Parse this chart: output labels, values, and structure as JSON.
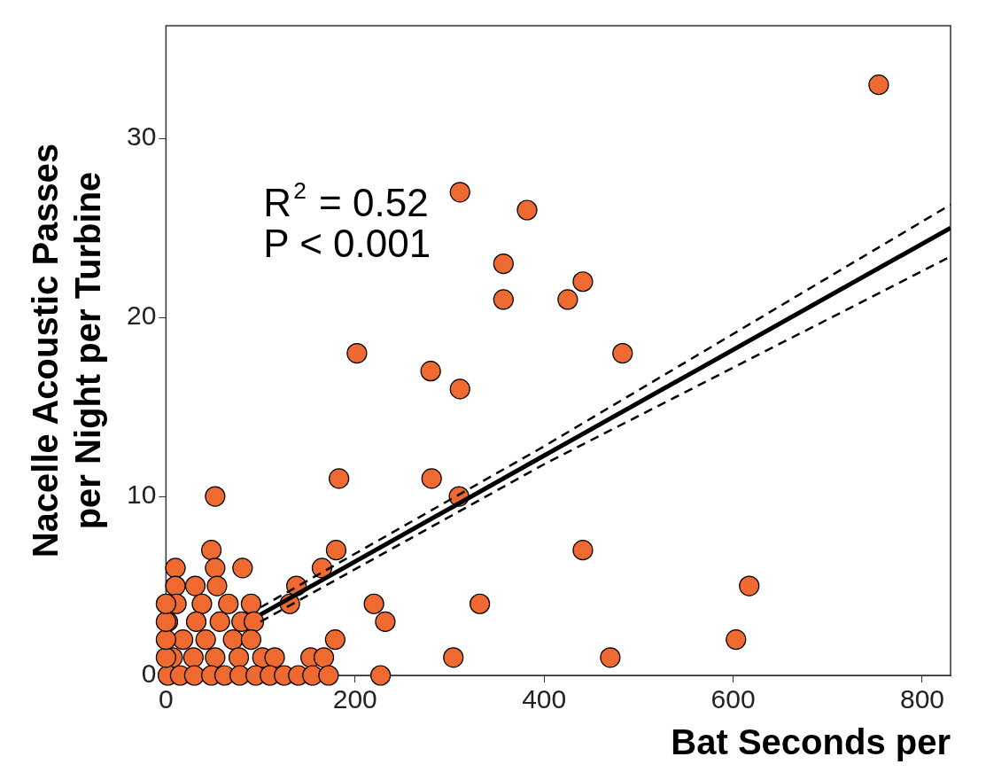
{
  "chart_data": {
    "type": "scatter",
    "xlabel": "Bat Seconds per",
    "ylabel": "Nacelle Acoustic Passes\nper Night per Turbine",
    "xlim": [
      0,
      830
    ],
    "ylim": [
      0,
      36.3
    ],
    "xticks": [
      0,
      200,
      400,
      600,
      800
    ],
    "yticks": [
      0,
      10,
      20,
      30
    ],
    "grid": false,
    "legend": false,
    "annotations": [
      "R$^{2}$ = 0.52",
      "P < 0.001"
    ],
    "series": [
      {
        "type": "scatter",
        "color": "#ee6a30",
        "marker": "circle",
        "x": [
          754,
          311,
          382,
          357,
          357,
          425,
          441,
          202,
          483,
          280,
          311,
          183,
          281,
          310,
          52,
          180,
          441,
          165,
          617,
          332,
          220,
          232,
          179,
          603,
          304,
          470,
          227,
          48,
          52,
          81,
          10,
          31,
          54,
          10,
          138,
          11,
          38,
          66,
          90,
          131,
          2,
          32,
          57,
          80,
          93,
          18,
          42,
          71,
          90,
          7,
          29,
          52,
          77,
          102,
          115,
          153,
          167,
          2,
          15,
          30,
          48,
          62,
          78,
          95,
          110,
          125,
          140,
          155,
          172,
          0,
          0,
          0,
          0
        ],
        "values": [
          33,
          27,
          26,
          23,
          21,
          21,
          22,
          18,
          18,
          17,
          16,
          11,
          11,
          10,
          10,
          7,
          7,
          6,
          5,
          4,
          4,
          3,
          2,
          2,
          1,
          1,
          0,
          7,
          6,
          6,
          6,
          5,
          5,
          5,
          5,
          4,
          4,
          4,
          4,
          4,
          3,
          3,
          3,
          3,
          3,
          2,
          2,
          2,
          2,
          1,
          1,
          1,
          1,
          1,
          1,
          1,
          1,
          0,
          0,
          0,
          0,
          0,
          0,
          0,
          0,
          0,
          0,
          0,
          0,
          1,
          2,
          3,
          4
        ]
      },
      {
        "type": "line",
        "color": "#000000",
        "marker": "none",
        "line_style": "solid",
        "x": [
          100,
          400,
          830
        ],
        "values": [
          3.4,
          12.28,
          25.0
        ]
      },
      {
        "type": "line",
        "color": "#000000",
        "marker": "none",
        "line_style": "dashed",
        "x": [
          100,
          400,
          830
        ],
        "values": [
          3.8,
          12.8,
          26.3
        ]
      },
      {
        "type": "line",
        "color": "#000000",
        "marker": "none",
        "line_style": "dashed",
        "x": [
          100,
          400,
          830
        ],
        "values": [
          3.0,
          11.8,
          23.4
        ]
      }
    ]
  }
}
